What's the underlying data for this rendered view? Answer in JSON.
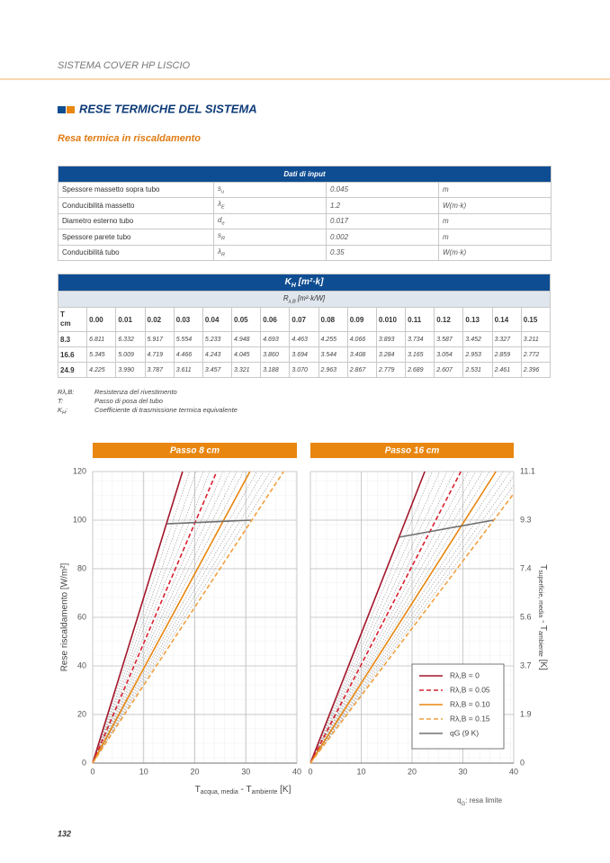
{
  "header": {
    "running_title": "SISTEMA COVER HP LISCIO",
    "section_title": "RESE TERMICHE DEL SISTEMA",
    "subtitle": "Resa termica in riscaldamento"
  },
  "input_table": {
    "title": "Dati di input",
    "rows": [
      {
        "label": "Spessore massetto sopra tubo",
        "symbol": "s",
        "symbol_sub": "u",
        "value": "0.045",
        "unit": "m"
      },
      {
        "label": "Conducibilità massetto",
        "symbol": "λ",
        "symbol_sub": "E",
        "value": "1.2",
        "unit": "W(m·k)"
      },
      {
        "label": "Diametro esterno tubo",
        "symbol": "d",
        "symbol_sub": "e",
        "value": "0.017",
        "unit": "m"
      },
      {
        "label": "Spessore parete tubo",
        "symbol": "s",
        "symbol_sub": "R",
        "value": "0.002",
        "unit": "m"
      },
      {
        "label": "Conducibilità tubo",
        "symbol": "λ",
        "symbol_sub": "R",
        "value": "0.35",
        "unit": "W(m·k)"
      }
    ]
  },
  "kh_table": {
    "title": "K",
    "title_sub": "H",
    "title_rest": " [m²·k]",
    "subtitle": "R",
    "subtitle_sub": "λ,B",
    "subtitle_rest": " [m²·k/W]",
    "row_header": "T",
    "row_header_unit": "cm",
    "columns": [
      "0.00",
      "0.01",
      "0.02",
      "0.03",
      "0.04",
      "0.05",
      "0.06",
      "0.07",
      "0.08",
      "0.09",
      "0.010",
      "0.11",
      "0.12",
      "0.13",
      "0.14",
      "0.15"
    ],
    "rows": [
      {
        "t": "8.3",
        "values": [
          "6.811",
          "6.332",
          "5.917",
          "5.554",
          "5.233",
          "4.948",
          "4.693",
          "4.463",
          "4.255",
          "4.066",
          "3.893",
          "3.734",
          "3.587",
          "3.452",
          "3.327",
          "3.211"
        ]
      },
      {
        "t": "16.6",
        "values": [
          "5.345",
          "5.009",
          "4.719",
          "4.466",
          "4.243",
          "4.045",
          "3.860",
          "3.694",
          "3.544",
          "3.408",
          "3.284",
          "3.165",
          "3.054",
          "2.953",
          "2.859",
          "2.772"
        ]
      },
      {
        "t": "24.9",
        "values": [
          "4.225",
          "3.990",
          "3.787",
          "3.611",
          "3.457",
          "3.321",
          "3.188",
          "3.070",
          "2.963",
          "2.867",
          "2.779",
          "2.689",
          "2.607",
          "2.531",
          "2.461",
          "2.396"
        ]
      }
    ]
  },
  "notes": [
    {
      "key": "Rλ,B:",
      "text": "Resistenza del rivestimento"
    },
    {
      "key": "T:",
      "text": "Passo di posa del tubo"
    },
    {
      "key": "K",
      "key_sub": "H",
      "key_end": ":",
      "text": "Coefficiente di trasmissione termica equivalente"
    }
  ],
  "chart_data": [
    {
      "type": "line",
      "title": "Passo 8 cm",
      "xlim": [
        0,
        40
      ],
      "xticks": [
        0,
        10,
        20,
        30,
        40
      ],
      "ylim": [
        0,
        120
      ],
      "yticks": [
        0,
        20,
        40,
        60,
        80,
        100,
        120
      ],
      "grid": true,
      "y_label": "Rese riscaldamento [W/m²]",
      "x_label": {
        "t1": "T",
        "s1": "acqua, media",
        "t2": " - T",
        "s2": "ambiente",
        "t3": " [K]"
      },
      "series": [
        {
          "color": "#a3162b",
          "dash": "solid",
          "x": [
            0,
            17.6
          ],
          "values": [
            0,
            120
          ]
        },
        {
          "color": "#d8202f",
          "dash": "dashed",
          "x": [
            0,
            24.3
          ],
          "values": [
            0,
            120
          ]
        },
        {
          "color": "#e8860f",
          "dash": "solid",
          "x": [
            0,
            30.8
          ],
          "values": [
            0,
            120
          ]
        },
        {
          "color": "#f0a040",
          "dash": "dashed",
          "x": [
            0,
            37.4
          ],
          "values": [
            0,
            120
          ]
        },
        {
          "color": "#707070",
          "dash": "solid",
          "x": [
            14.5,
            31
          ],
          "values": [
            98.5,
            100
          ]
        }
      ]
    },
    {
      "type": "line",
      "title": "Passo 16 cm",
      "xlim": [
        0,
        40
      ],
      "xticks": [
        0,
        10,
        20,
        30,
        40
      ],
      "ylim": [
        0,
        120
      ],
      "yticks": [
        0,
        20,
        40,
        60,
        80,
        100,
        120
      ],
      "grid": true,
      "y2lim": [
        0,
        11.1
      ],
      "y2ticks": [
        0,
        {
          "value": 1.85,
          "label": "1.9"
        },
        3.7,
        {
          "value": 5.55,
          "label": "5.6"
        },
        7.4,
        {
          "value": 9.25,
          "label": "9.3"
        },
        11.1
      ],
      "y2_label": {
        "t1": "T",
        "s1": "superficie, media",
        "t2": " - T",
        "s2": "ambiente",
        "t3": " [K]"
      },
      "legend": "lower right",
      "series": [
        {
          "name": "Rλ,B = 0",
          "color": "#a3162b",
          "dash": "solid",
          "x": [
            0,
            22.5
          ],
          "values": [
            0,
            120
          ]
        },
        {
          "name": "Rλ,B = 0.05",
          "color": "#d8202f",
          "dash": "dashed",
          "x": [
            0,
            29.6
          ],
          "values": [
            0,
            120
          ]
        },
        {
          "name": "Rλ,B = 0.10",
          "color": "#e8860f",
          "dash": "solid",
          "x": [
            0,
            36.5
          ],
          "values": [
            0,
            120
          ]
        },
        {
          "name": "Rλ,B = 0.15",
          "color": "#f0a040",
          "dash": "dashed",
          "x": [
            0,
            40
          ],
          "values": [
            0,
            110.9
          ]
        },
        {
          "name": "qG (9 K)",
          "color": "#707070",
          "dash": "solid",
          "x": [
            17.5,
            36
          ],
          "values": [
            93,
            100
          ]
        }
      ]
    }
  ],
  "footnote": {
    "key": "q",
    "key_sub": "G",
    "text": ": resa limite"
  },
  "page_number": "132"
}
